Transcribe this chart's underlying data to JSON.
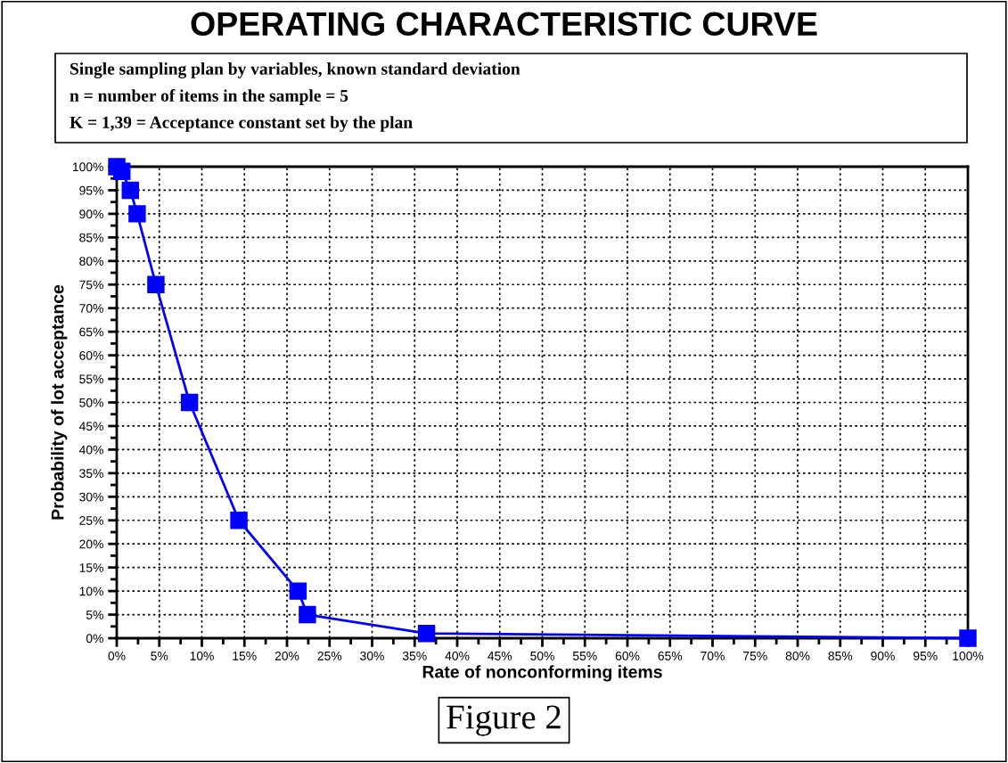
{
  "chart_data": {
    "type": "line",
    "title": "OPERATING CHARACTERISTIC CURVE",
    "annotations": [
      "Single sampling plan by variables, known standard deviation",
      "n = number of items in the sample = 5",
      "K = 1,39 = Acceptance constant set by the plan",
      "Figure 2"
    ],
    "xlabel": "Rate of nonconforming items",
    "ylabel": "Probability of lot acceptance",
    "x": [
      0,
      0.6,
      1.6,
      2.4,
      4.6,
      8.55,
      14.35,
      21.3,
      22.4,
      36.4,
      100
    ],
    "series": [
      {
        "color": "#0000ff",
        "values": [
          100,
          99,
          95,
          90,
          75,
          50,
          25,
          10,
          5,
          1,
          0
        ]
      }
    ],
    "marker": "square",
    "line_style": "solid",
    "grid": true,
    "xlim": [
      0,
      100
    ],
    "ylim": [
      0,
      100
    ],
    "xticks": [
      {
        "value": 2.5,
        "label": null
      },
      {
        "value": 7.5,
        "label": null
      },
      {
        "value": 12.5,
        "label": null
      },
      {
        "value": 17.5,
        "label": null
      },
      {
        "value": 22.5,
        "label": null
      },
      {
        "value": 27.5,
        "label": null
      },
      {
        "value": 32.5,
        "label": null
      },
      {
        "value": 37.5,
        "label": null
      },
      {
        "value": 42.5,
        "label": null
      },
      {
        "value": 47.5,
        "label": null
      },
      {
        "value": 52.5,
        "label": null
      },
      {
        "value": 57.5,
        "label": null
      },
      {
        "value": 62.5,
        "label": null
      },
      {
        "value": 67.5,
        "label": null
      },
      {
        "value": 72.5,
        "label": null
      },
      {
        "value": 77.5,
        "label": null
      },
      {
        "value": 82.5,
        "label": null
      },
      {
        "value": 87.5,
        "label": null
      },
      {
        "value": 92.5,
        "label": null
      },
      {
        "value": 97.5,
        "label": null
      },
      {
        "value": 0,
        "label": "0%"
      },
      {
        "value": 5,
        "label": "5%"
      },
      {
        "value": 10,
        "label": "10%"
      },
      {
        "value": 15,
        "label": "15%"
      },
      {
        "value": 20,
        "label": "20%"
      },
      {
        "value": 25,
        "label": "25%"
      },
      {
        "value": 30,
        "label": "30%"
      },
      {
        "value": 35,
        "label": "35%"
      },
      {
        "value": 40,
        "label": "40%"
      },
      {
        "value": 45,
        "label": "45%"
      },
      {
        "value": 50,
        "label": "50%"
      },
      {
        "value": 55,
        "label": "55%"
      },
      {
        "value": 60,
        "label": "60%"
      },
      {
        "value": 65,
        "label": "65%"
      },
      {
        "value": 70,
        "label": "70%"
      },
      {
        "value": 75,
        "label": "75%"
      },
      {
        "value": 80,
        "label": "80%"
      },
      {
        "value": 85,
        "label": "85%"
      },
      {
        "value": 90,
        "label": "90%"
      },
      {
        "value": 95,
        "label": "95%"
      },
      {
        "value": 100,
        "label": "100%"
      }
    ],
    "yticks": [
      {
        "value": 2.5,
        "label": null
      },
      {
        "value": 7.5,
        "label": null
      },
      {
        "value": 12.5,
        "label": null
      },
      {
        "value": 17.5,
        "label": null
      },
      {
        "value": 22.5,
        "label": null
      },
      {
        "value": 27.5,
        "label": null
      },
      {
        "value": 32.5,
        "label": null
      },
      {
        "value": 37.5,
        "label": null
      },
      {
        "value": 42.5,
        "label": null
      },
      {
        "value": 47.5,
        "label": null
      },
      {
        "value": 52.5,
        "label": null
      },
      {
        "value": 57.5,
        "label": null
      },
      {
        "value": 62.5,
        "label": null
      },
      {
        "value": 67.5,
        "label": null
      },
      {
        "value": 72.5,
        "label": null
      },
      {
        "value": 77.5,
        "label": null
      },
      {
        "value": 82.5,
        "label": null
      },
      {
        "value": 87.5,
        "label": null
      },
      {
        "value": 92.5,
        "label": null
      },
      {
        "value": 97.5,
        "label": null
      },
      {
        "value": 0,
        "label": "0%"
      },
      {
        "value": 5,
        "label": "5%"
      },
      {
        "value": 10,
        "label": "10%"
      },
      {
        "value": 15,
        "label": "15%"
      },
      {
        "value": 20,
        "label": "20%"
      },
      {
        "value": 25,
        "label": "25%"
      },
      {
        "value": 30,
        "label": "30%"
      },
      {
        "value": 35,
        "label": "35%"
      },
      {
        "value": 40,
        "label": "40%"
      },
      {
        "value": 45,
        "label": "45%"
      },
      {
        "value": 50,
        "label": "50%"
      },
      {
        "value": 55,
        "label": "55%"
      },
      {
        "value": 60,
        "label": "60%"
      },
      {
        "value": 65,
        "label": "65%"
      },
      {
        "value": 70,
        "label": "70%"
      },
      {
        "value": 75,
        "label": "75%"
      },
      {
        "value": 80,
        "label": "80%"
      },
      {
        "value": 85,
        "label": "85%"
      },
      {
        "value": 90,
        "label": "90%"
      },
      {
        "value": 95,
        "label": "95%"
      },
      {
        "value": 100,
        "label": "100%"
      }
    ]
  }
}
